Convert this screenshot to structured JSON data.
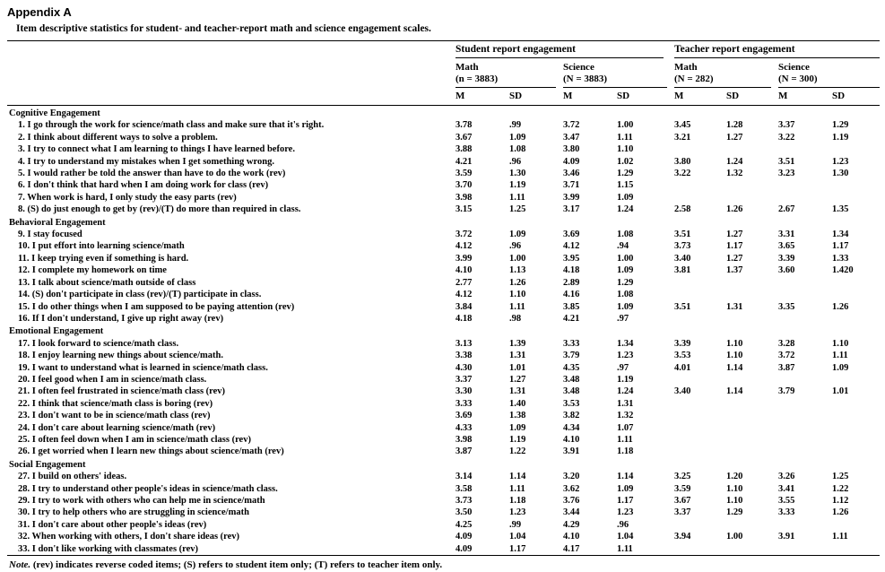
{
  "page": {
    "appendix_title": "Appendix A",
    "caption": "Item descriptive statistics for student- and teacher-report math and science engagement scales.",
    "note_prefix": "Note.",
    "note_text": " (rev) indicates reverse coded items; (S) refers to student item only; (T) refers to teacher item only."
  },
  "table": {
    "col_groups": [
      {
        "label": "Student report engagement",
        "subgroups": [
          {
            "label": "Math",
            "n": "(n = 3883)"
          },
          {
            "label": "Science",
            "n": "(N = 3883)"
          }
        ]
      },
      {
        "label": "Teacher report engagement",
        "subgroups": [
          {
            "label": "Math",
            "n": "(N = 282)"
          },
          {
            "label": "Science",
            "n": "(N = 300)"
          }
        ]
      }
    ],
    "stat_headers": [
      "M",
      "SD",
      "M",
      "SD",
      "M",
      "SD",
      "M",
      "SD"
    ],
    "sections": [
      {
        "title": "Cognitive Engagement",
        "rows": [
          {
            "item": "1. I go through the work for science/math class and make sure that it's right.",
            "values": [
              "3.78",
              ".99",
              "3.72",
              "1.00",
              "3.45",
              "1.28",
              "3.37",
              "1.29"
            ]
          },
          {
            "item": "2. I think about different ways to solve a problem.",
            "values": [
              "3.67",
              "1.09",
              "3.47",
              "1.11",
              "3.21",
              "1.27",
              "3.22",
              "1.19"
            ]
          },
          {
            "item": "3. I try to connect what I am learning to things I have learned before.",
            "values": [
              "3.88",
              "1.08",
              "3.80",
              "1.10",
              "",
              "",
              "",
              ""
            ]
          },
          {
            "item": "4. I try to understand my mistakes when I get something wrong.",
            "values": [
              "4.21",
              ".96",
              "4.09",
              "1.02",
              "3.80",
              "1.24",
              "3.51",
              "1.23"
            ]
          },
          {
            "item": "5. I would rather be told the answer than have to do the work (rev)",
            "values": [
              "3.59",
              "1.30",
              "3.46",
              "1.29",
              "3.22",
              "1.32",
              "3.23",
              "1.30"
            ]
          },
          {
            "item": "6. I don't think that hard when I am doing work for class (rev)",
            "values": [
              "3.70",
              "1.19",
              "3.71",
              "1.15",
              "",
              "",
              "",
              ""
            ]
          },
          {
            "item": "7. When work is hard, I only study the easy parts (rev)",
            "values": [
              "3.98",
              "1.11",
              "3.99",
              "1.09",
              "",
              "",
              "",
              ""
            ]
          },
          {
            "item": "8. (S) do just enough to get by (rev)/(T) do more than required in class.",
            "values": [
              "3.15",
              "1.25",
              "3.17",
              "1.24",
              "2.58",
              "1.26",
              "2.67",
              "1.35"
            ]
          }
        ]
      },
      {
        "title": "Behavioral Engagement",
        "rows": [
          {
            "item": "9. I stay focused",
            "values": [
              "3.72",
              "1.09",
              "3.69",
              "1.08",
              "3.51",
              "1.27",
              "3.31",
              "1.34"
            ]
          },
          {
            "item": "10. I put effort into learning science/math",
            "values": [
              "4.12",
              ".96",
              "4.12",
              ".94",
              "3.73",
              "1.17",
              "3.65",
              "1.17"
            ]
          },
          {
            "item": "11. I keep trying even if something is hard.",
            "values": [
              "3.99",
              "1.00",
              "3.95",
              "1.00",
              "3.40",
              "1.27",
              "3.39",
              "1.33"
            ]
          },
          {
            "item": "12. I complete my homework on time",
            "values": [
              "4.10",
              "1.13",
              "4.18",
              "1.09",
              "3.81",
              "1.37",
              "3.60",
              "1.420"
            ]
          },
          {
            "item": "13. I talk about science/math outside of class",
            "values": [
              "2.77",
              "1.26",
              "2.89",
              "1.29",
              "",
              "",
              "",
              ""
            ]
          },
          {
            "item": "14. (S) don't participate in class (rev)/(T) participate in class.",
            "values": [
              "4.12",
              "1.10",
              "4.16",
              "1.08",
              "",
              "",
              "",
              ""
            ]
          },
          {
            "item": "15. I do other things when I am supposed to be paying attention (rev)",
            "values": [
              "3.84",
              "1.11",
              "3.85",
              "1.09",
              "3.51",
              "1.31",
              "3.35",
              "1.26"
            ]
          },
          {
            "item": "16. If I don't understand, I give up right away (rev)",
            "values": [
              "4.18",
              ".98",
              "4.21",
              ".97",
              "",
              "",
              "",
              ""
            ]
          }
        ]
      },
      {
        "title": "Emotional Engagement",
        "rows": [
          {
            "item": "17. I look forward to science/math class.",
            "values": [
              "3.13",
              "1.39",
              "3.33",
              "1.34",
              "3.39",
              "1.10",
              "3.28",
              "1.10"
            ]
          },
          {
            "item": "18. I enjoy learning new things about science/math.",
            "values": [
              "3.38",
              "1.31",
              "3.79",
              "1.23",
              "3.53",
              "1.10",
              "3.72",
              "1.11"
            ]
          },
          {
            "item": "19. I want to understand what is learned in science/math class.",
            "values": [
              "4.30",
              "1.01",
              "4.35",
              ".97",
              "4.01",
              "1.14",
              "3.87",
              "1.09"
            ]
          },
          {
            "item": "20. I feel good when I am in science/math class.",
            "values": [
              "3.37",
              "1.27",
              "3.48",
              "1.19",
              "",
              "",
              "",
              ""
            ]
          },
          {
            "item": "21. I often feel frustrated in science/math class (rev)",
            "values": [
              "3.30",
              "1.31",
              "3.48",
              "1.24",
              "3.40",
              "1.14",
              "3.79",
              "1.01"
            ]
          },
          {
            "item": "22. I think that science/math class is boring (rev)",
            "values": [
              "3.33",
              "1.40",
              "3.53",
              "1.31",
              "",
              "",
              "",
              ""
            ]
          },
          {
            "item": "23. I don't want to be in science/math class (rev)",
            "values": [
              "3.69",
              "1.38",
              "3.82",
              "1.32",
              "",
              "",
              "",
              ""
            ]
          },
          {
            "item": "24. I don't care about learning science/math (rev)",
            "values": [
              "4.33",
              "1.09",
              "4.34",
              "1.07",
              "",
              "",
              "",
              ""
            ]
          },
          {
            "item": "25. I often feel down when I am in science/math class (rev)",
            "values": [
              "3.98",
              "1.19",
              "4.10",
              "1.11",
              "",
              "",
              "",
              ""
            ]
          },
          {
            "item": "26. I get worried when I learn new things about science/math (rev)",
            "values": [
              "3.87",
              "1.22",
              "3.91",
              "1.18",
              "",
              "",
              "",
              ""
            ]
          }
        ]
      },
      {
        "title": "Social Engagement",
        "rows": [
          {
            "item": "27. I build on others' ideas.",
            "values": [
              "3.14",
              "1.14",
              "3.20",
              "1.14",
              "3.25",
              "1.20",
              "3.26",
              "1.25"
            ]
          },
          {
            "item": "28. I try to understand other people's ideas in science/math class.",
            "values": [
              "3.58",
              "1.11",
              "3.62",
              "1.09",
              "3.59",
              "1.10",
              "3.41",
              "1.22"
            ]
          },
          {
            "item": "29. I try to work with others who can help me in science/math",
            "values": [
              "3.73",
              "1.18",
              "3.76",
              "1.17",
              "3.67",
              "1.10",
              "3.55",
              "1.12"
            ]
          },
          {
            "item": "30. I try to help others who are struggling in science/math",
            "values": [
              "3.50",
              "1.23",
              "3.44",
              "1.23",
              "3.37",
              "1.29",
              "3.33",
              "1.26"
            ]
          },
          {
            "item": "31. I don't care about other people's ideas (rev)",
            "values": [
              "4.25",
              ".99",
              "4.29",
              ".96",
              "",
              "",
              "",
              ""
            ]
          },
          {
            "item": "32. When working with others, I don't share ideas (rev)",
            "values": [
              "4.09",
              "1.04",
              "4.10",
              "1.04",
              "3.94",
              "1.00",
              "3.91",
              "1.11"
            ]
          },
          {
            "item": "33. I don't like working with classmates (rev)",
            "values": [
              "4.09",
              "1.17",
              "4.17",
              "1.11",
              "",
              "",
              "",
              ""
            ]
          }
        ]
      }
    ]
  }
}
